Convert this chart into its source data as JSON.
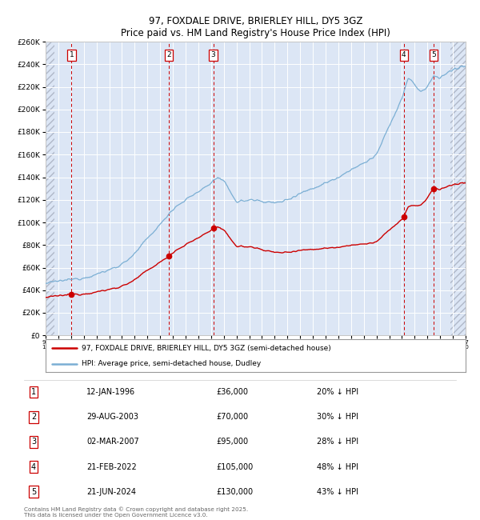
{
  "title": "97, FOXDALE DRIVE, BRIERLEY HILL, DY5 3GZ",
  "subtitle": "Price paid vs. HM Land Registry's House Price Index (HPI)",
  "bg_color": "#dce6f5",
  "hpi_color": "#7bafd4",
  "price_color": "#cc0000",
  "transactions": [
    {
      "num": 1,
      "date_str": "12-JAN-1996",
      "date_x": 1996.04,
      "price": 36000,
      "label": "20% ↓ HPI"
    },
    {
      "num": 2,
      "date_str": "29-AUG-2003",
      "date_x": 2003.66,
      "price": 70000,
      "label": "30% ↓ HPI"
    },
    {
      "num": 3,
      "date_str": "02-MAR-2007",
      "date_x": 2007.17,
      "price": 95000,
      "label": "28% ↓ HPI"
    },
    {
      "num": 4,
      "date_str": "21-FEB-2022",
      "date_x": 2022.14,
      "price": 105000,
      "label": "48% ↓ HPI"
    },
    {
      "num": 5,
      "date_str": "21-JUN-2024",
      "date_x": 2024.47,
      "price": 130000,
      "label": "43% ↓ HPI"
    }
  ],
  "ylim": [
    0,
    260000
  ],
  "xlim": [
    1994.0,
    2027.0
  ],
  "yticks": [
    0,
    20000,
    40000,
    60000,
    80000,
    100000,
    120000,
    140000,
    160000,
    180000,
    200000,
    220000,
    240000,
    260000
  ],
  "legend_labels": [
    "97, FOXDALE DRIVE, BRIERLEY HILL, DY5 3GZ (semi-detached house)",
    "HPI: Average price, semi-detached house, Dudley"
  ],
  "footer_text": "Contains HM Land Registry data © Crown copyright and database right 2025.\nThis data is licensed under the Open Government Licence v3.0.",
  "table_rows": [
    [
      "1",
      "12-JAN-1996",
      "£36,000",
      "20% ↓ HPI"
    ],
    [
      "2",
      "29-AUG-2003",
      "£70,000",
      "30% ↓ HPI"
    ],
    [
      "3",
      "02-MAR-2007",
      "£95,000",
      "28% ↓ HPI"
    ],
    [
      "4",
      "21-FEB-2022",
      "£105,000",
      "48% ↓ HPI"
    ],
    [
      "5",
      "21-JUN-2024",
      "£130,000",
      "43% ↓ HPI"
    ]
  ],
  "hatch_left_end": 1994.7,
  "hatch_right_start": 2025.8
}
